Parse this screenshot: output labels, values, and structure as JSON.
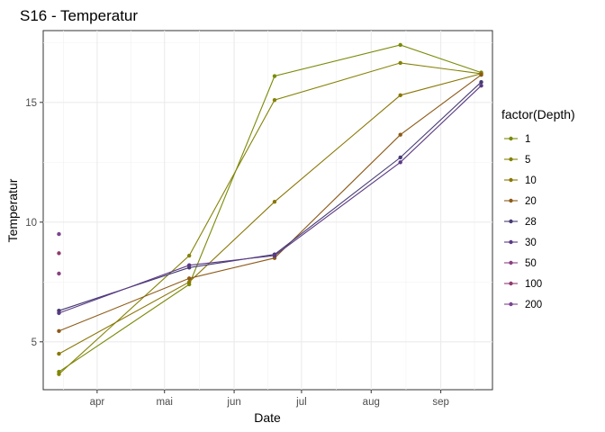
{
  "chart_data": {
    "type": "line",
    "title": "S16  -  Temperatur",
    "xlabel": "Date",
    "ylabel": "Temperatur",
    "x_ticks": [
      "2023-04-01",
      "2023-05-01",
      "2023-06-01",
      "2023-07-01",
      "2023-08-01",
      "2023-09-01"
    ],
    "x_tick_labels": [
      "apr",
      "mai",
      "jun",
      "jul",
      "aug",
      "sep"
    ],
    "xlim": [
      "2023-03-08",
      "2023-09-24"
    ],
    "y_ticks": [
      5,
      10,
      15
    ],
    "y_tick_labels": [
      "5",
      "10",
      "15"
    ],
    "ylim": [
      3.0,
      18.0
    ],
    "grid": true,
    "legend_title": "factor(Depth)",
    "legend_position": "right",
    "series": [
      {
        "name": "1",
        "color": "#7b8a08",
        "x": [
          "2023-03-15",
          "2023-05-12",
          "2023-06-19",
          "2023-08-14",
          "2023-09-19"
        ],
        "y": [
          3.75,
          7.4,
          16.1,
          17.4,
          16.25
        ]
      },
      {
        "name": "5",
        "color": "#848306",
        "x": [
          "2023-03-15",
          "2023-05-12",
          "2023-06-19",
          "2023-08-14",
          "2023-09-19"
        ],
        "y": [
          3.65,
          8.6,
          15.1,
          16.65,
          16.2
        ]
      },
      {
        "name": "10",
        "color": "#8a7705",
        "x": [
          "2023-03-15",
          "2023-05-12",
          "2023-06-19",
          "2023-08-14",
          "2023-09-19"
        ],
        "y": [
          4.5,
          7.5,
          10.85,
          15.3,
          16.2
        ]
      },
      {
        "name": "20",
        "color": "#8d5a17",
        "x": [
          "2023-03-15",
          "2023-05-12",
          "2023-06-19",
          "2023-08-14",
          "2023-09-19"
        ],
        "y": [
          5.45,
          7.65,
          8.5,
          13.65,
          16.15
        ]
      },
      {
        "name": "28",
        "color": "#463b74",
        "x": [
          "2023-03-15",
          "2023-05-12",
          "2023-06-19",
          "2023-08-14",
          "2023-09-19"
        ],
        "y": [
          6.3,
          8.1,
          8.65,
          12.7,
          15.85
        ]
      },
      {
        "name": "30",
        "color": "#5a3a84",
        "x": [
          "2023-03-15",
          "2023-05-12",
          "2023-06-19",
          "2023-08-14",
          "2023-09-19"
        ],
        "y": [
          6.2,
          8.2,
          8.6,
          12.5,
          15.7
        ]
      },
      {
        "name": "50",
        "color": "#8a4080",
        "x": [
          "2023-03-15"
        ],
        "y": [
          7.85
        ]
      },
      {
        "name": "100",
        "color": "#8f3a6f",
        "x": [
          "2023-03-15"
        ],
        "y": [
          8.7
        ]
      },
      {
        "name": "200",
        "color": "#7a4490",
        "x": [
          "2023-03-15"
        ],
        "y": [
          9.5
        ]
      }
    ]
  }
}
